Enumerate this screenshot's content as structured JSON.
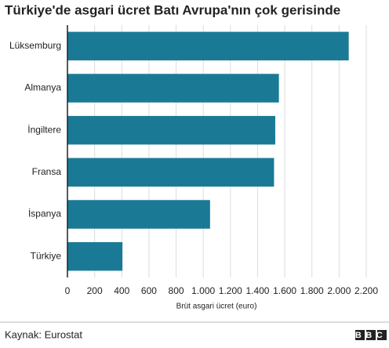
{
  "chart_data": {
    "type": "bar",
    "orientation": "horizontal",
    "title": "Türkiye'de asgari ücret Batı Avrupa'nın çok gerisinde",
    "categories": [
      "Lüksemburg",
      "Almanya",
      "İngiltere",
      "Fransa",
      "İspanya",
      "Türkiye"
    ],
    "values": [
      2071,
      1557,
      1530,
      1521,
      1050,
      405
    ],
    "color": "#1a7a96",
    "xlim": [
      0,
      2200
    ],
    "xticks": [
      0,
      200,
      400,
      600,
      800,
      {
        "value": 1000,
        "label": "1.000"
      },
      {
        "value": 1200,
        "label": "1.200"
      },
      {
        "value": 1400,
        "label": "1.400"
      },
      {
        "value": 1600,
        "label": "1.600"
      },
      {
        "value": 1800,
        "label": "1.800"
      },
      {
        "value": 2000,
        "label": "2.000"
      },
      {
        "value": 2200,
        "label": "2.200"
      }
    ],
    "x_label": "Brüt asgari ücret (euro)",
    "grid": true,
    "source": "Kaynak: Eurostat",
    "logo": "BBC"
  }
}
